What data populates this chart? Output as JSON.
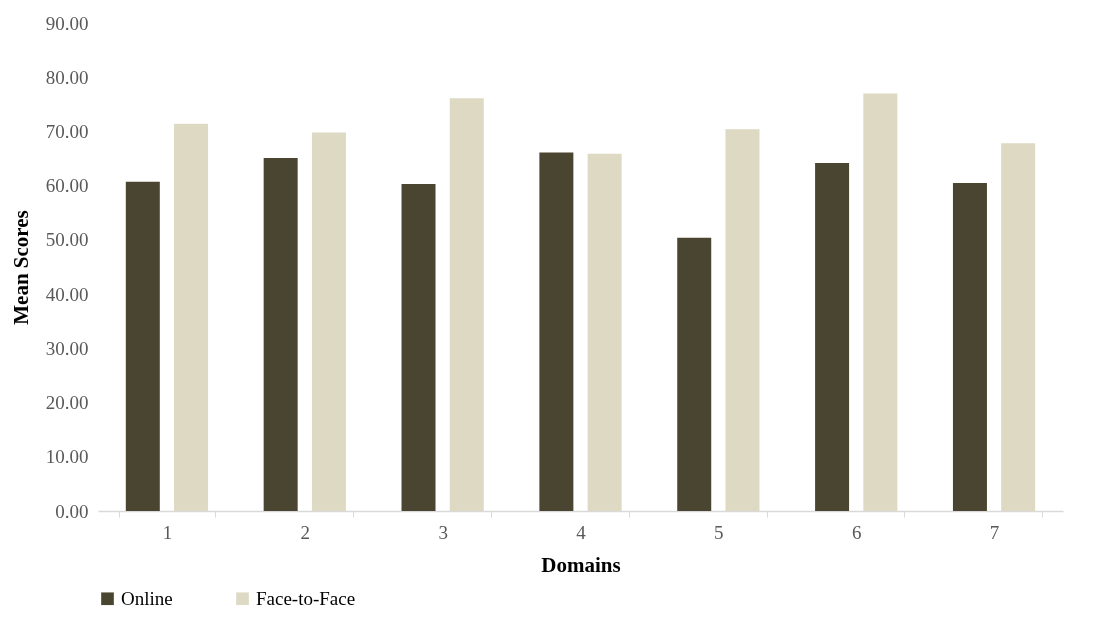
{
  "chart_data": {
    "type": "bar",
    "xlabel": "Domains",
    "ylabel": "Mean Scores",
    "categories": [
      "1",
      "2",
      "3",
      "4",
      "5",
      "6",
      "7"
    ],
    "series": [
      {
        "name": "Online",
        "color": "#4a4530",
        "values": [
          60.7,
          65.1,
          60.3,
          66.1,
          50.4,
          64.2,
          60.5
        ]
      },
      {
        "name": "Face-to-Face",
        "color": "#ddd9c3",
        "values": [
          71.4,
          69.8,
          76.1,
          65.9,
          70.4,
          77.0,
          67.8
        ]
      }
    ],
    "ylim": [
      0,
      90
    ],
    "yticks": [
      {
        "value": 0,
        "label": "0.00"
      },
      {
        "value": 10,
        "label": "10.00"
      },
      {
        "value": 20,
        "label": "20.00"
      },
      {
        "value": 30,
        "label": "30.00"
      },
      {
        "value": 40,
        "label": "40.00"
      },
      {
        "value": 50,
        "label": "50.00"
      },
      {
        "value": 60,
        "label": "60.00"
      },
      {
        "value": 70,
        "label": "70.00"
      },
      {
        "value": 80,
        "label": "80.00"
      },
      {
        "value": 90,
        "label": "90.00"
      }
    ],
    "grid": false,
    "legend": "bottom"
  }
}
